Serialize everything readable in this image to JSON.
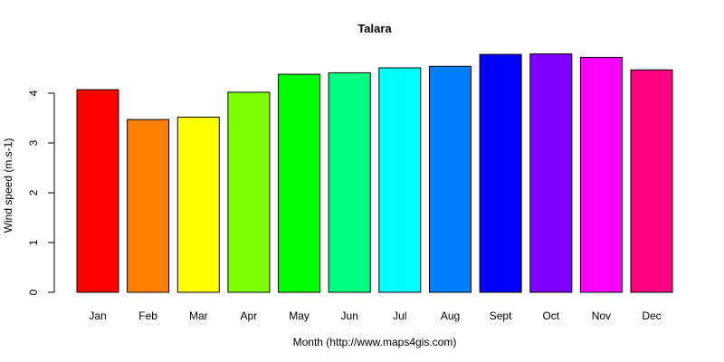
{
  "chart_data": {
    "type": "bar",
    "title": "Talara",
    "xlabel": "Month (http://www.maps4gis.com)",
    "ylabel": "Wind speed (m.s-1)",
    "categories": [
      "Jan",
      "Feb",
      "Mar",
      "Apr",
      "May",
      "Jun",
      "Jul",
      "Aug",
      "Sept",
      "Oct",
      "Nov",
      "Dec"
    ],
    "values": [
      4.07,
      3.47,
      3.52,
      4.02,
      4.38,
      4.41,
      4.51,
      4.54,
      4.78,
      4.79,
      4.72,
      4.47
    ],
    "colors": [
      "#FF0000",
      "#FF8000",
      "#FFFF00",
      "#80FF00",
      "#00FF00",
      "#00FF80",
      "#00FFFF",
      "#0080FF",
      "#0000FF",
      "#8000FF",
      "#FF00FF",
      "#FF0080"
    ],
    "yticks": [
      0,
      1,
      2,
      3,
      4
    ],
    "ylim": [
      0,
      4.8
    ],
    "grid": false,
    "legend": "none"
  }
}
